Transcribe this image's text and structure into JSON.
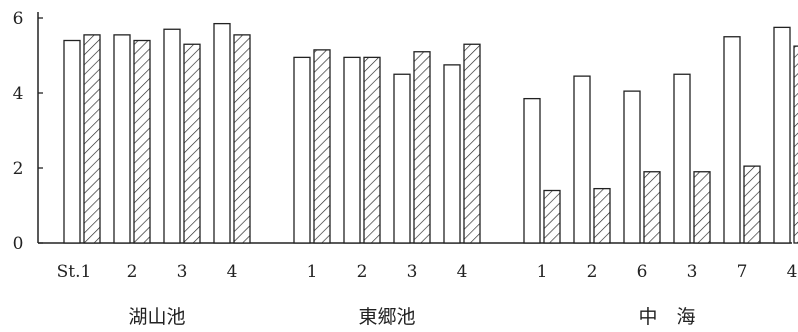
{
  "chart_data": {
    "type": "bar",
    "ylim": [
      0,
      6
    ],
    "yticks": [
      0,
      2,
      4,
      6
    ],
    "grid": false,
    "legend": "none",
    "groups": [
      {
        "label": "湖山池",
        "categories": [
          "St.1",
          "2",
          "3",
          "4"
        ]
      },
      {
        "label": "東郷池",
        "categories": [
          "1",
          "2",
          "3",
          "4"
        ]
      },
      {
        "label": "中　海",
        "categories": [
          "1",
          "2",
          "6",
          "3",
          "7",
          "4"
        ]
      }
    ],
    "series": [
      {
        "style": "open",
        "values": [
          5.4,
          5.55,
          5.7,
          5.85,
          4.95,
          4.95,
          4.5,
          4.75,
          3.85,
          4.45,
          4.05,
          4.5,
          5.5,
          5.75
        ]
      },
      {
        "style": "hatched",
        "values": [
          5.55,
          5.4,
          5.3,
          5.55,
          5.15,
          4.95,
          5.1,
          5.3,
          1.4,
          1.45,
          1.9,
          1.9,
          2.05,
          5.25
        ]
      }
    ]
  }
}
